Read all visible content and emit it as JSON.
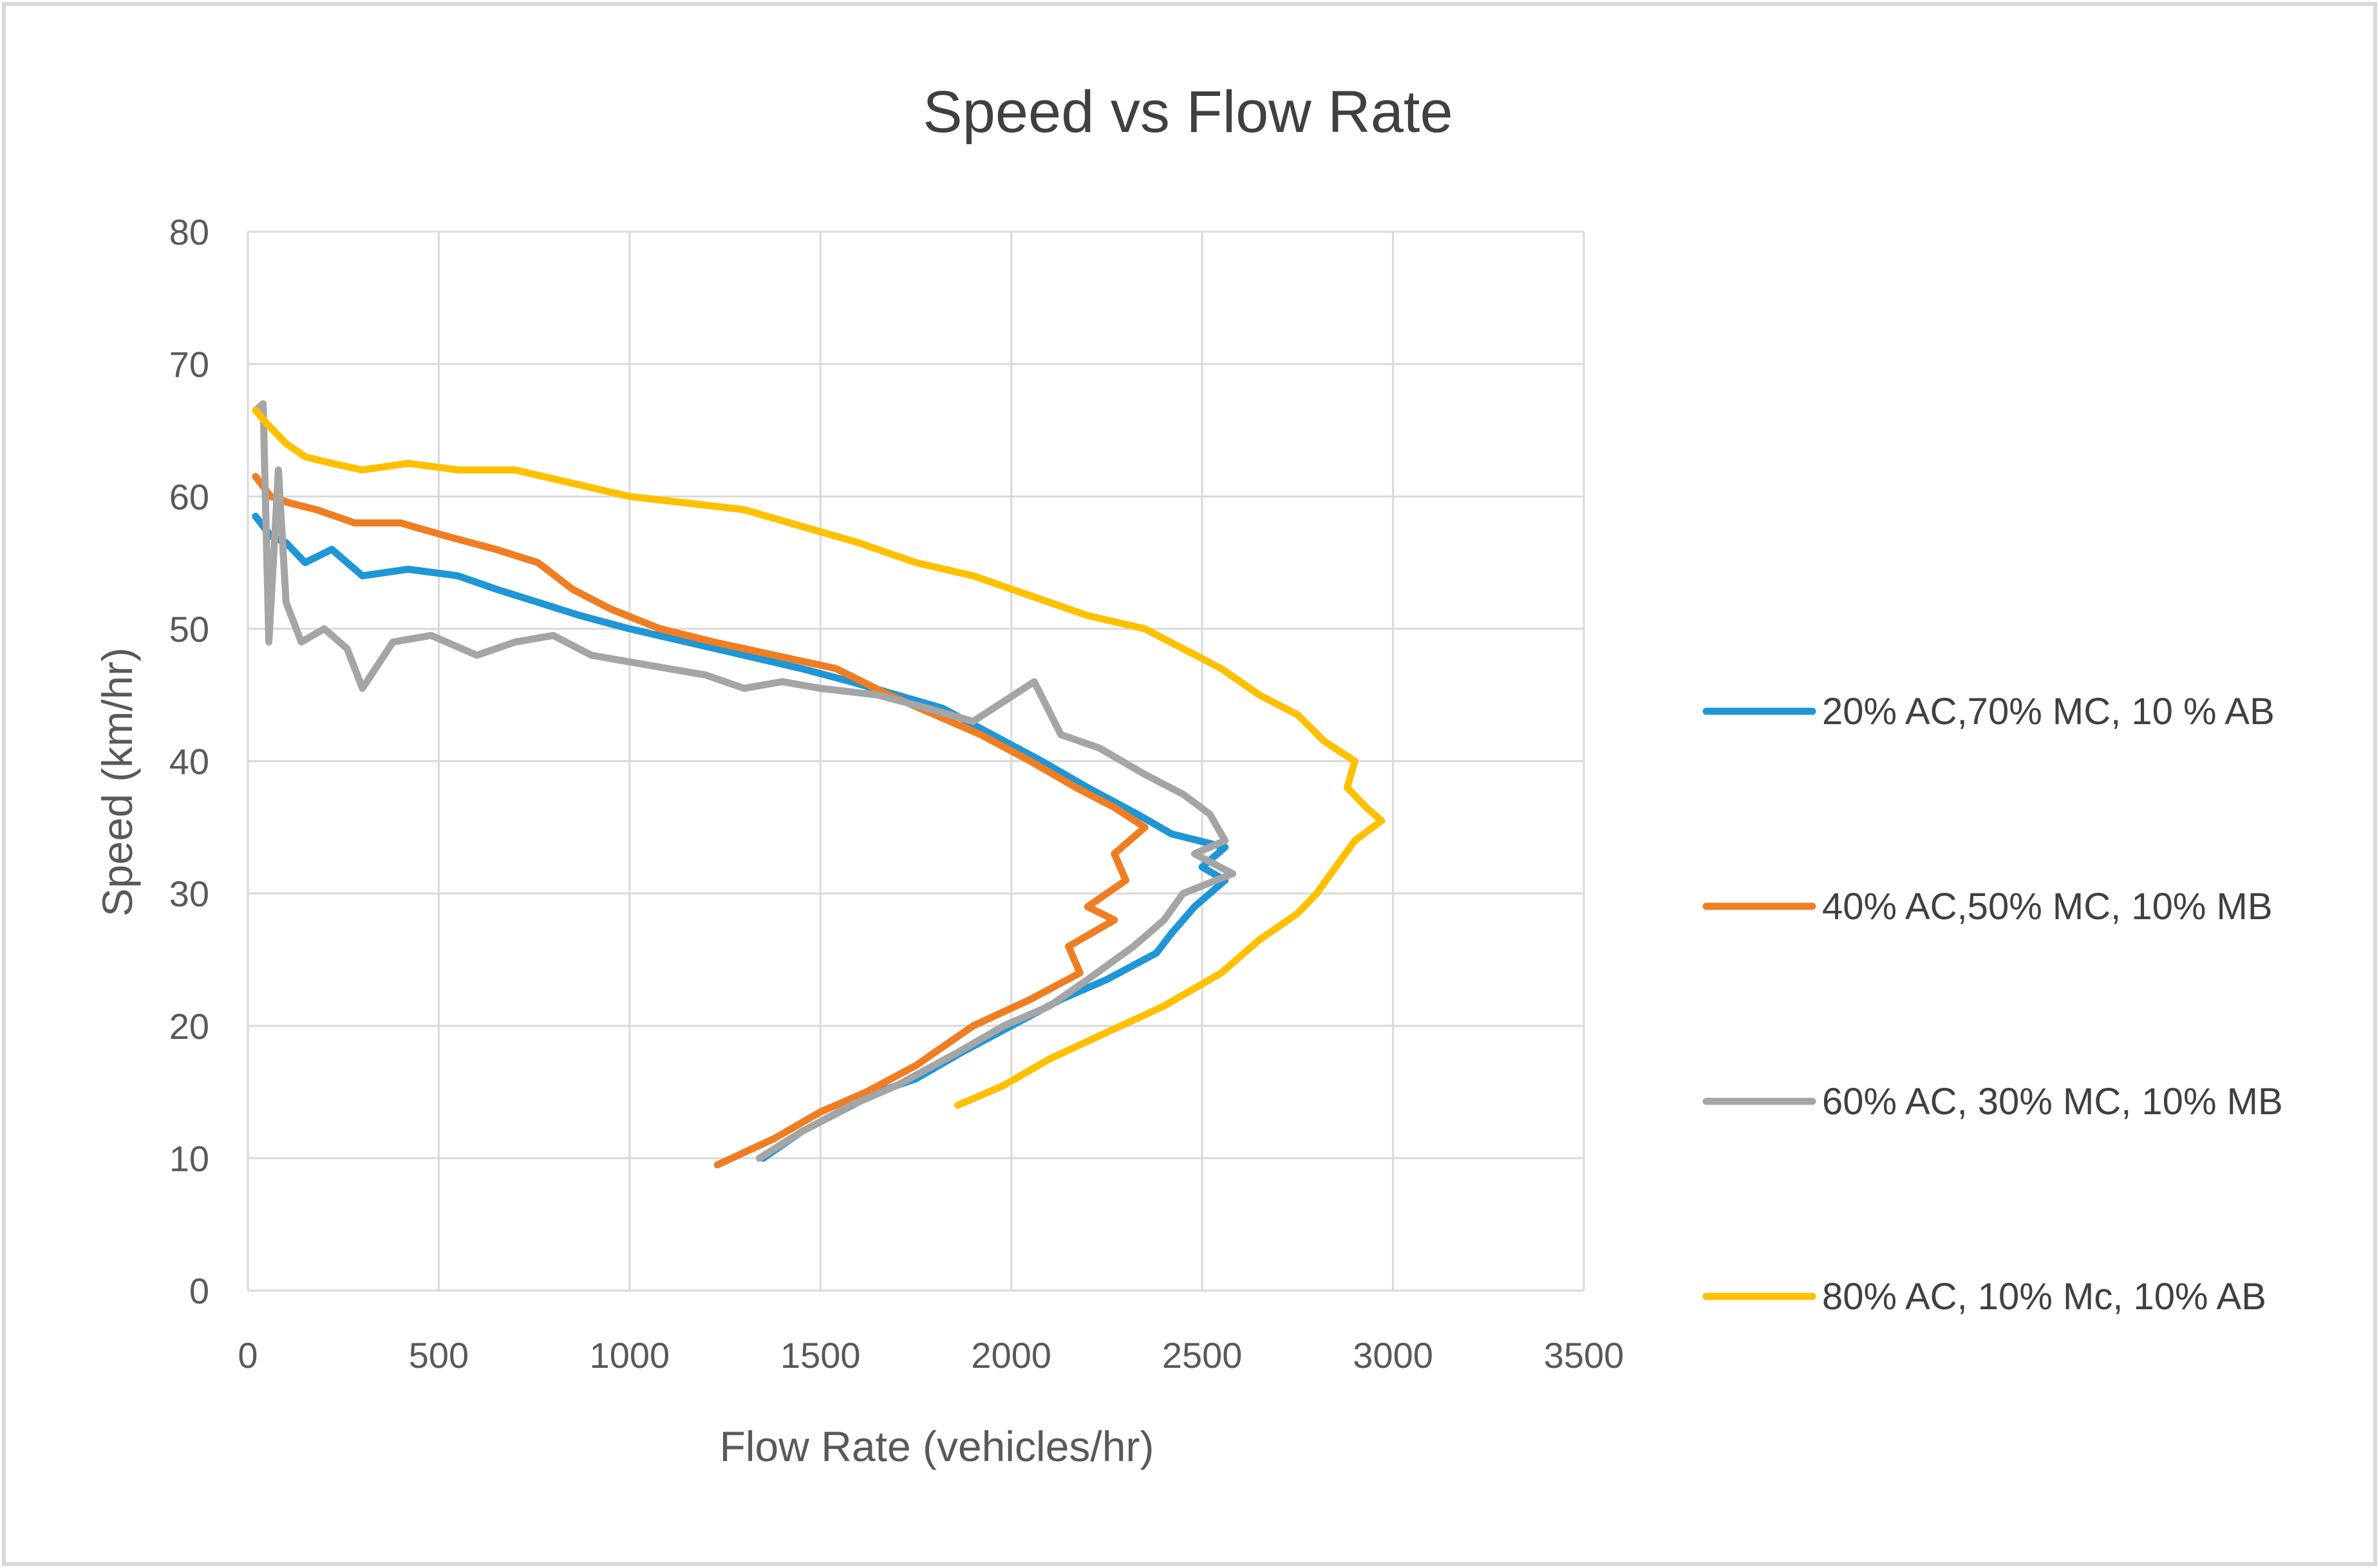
{
  "chart_data": {
    "type": "line",
    "title": "Speed vs Flow Rate",
    "xlabel": "Flow Rate (vehicles/hr)",
    "ylabel": "Speed (km/hr)",
    "xlim": [
      0,
      3500
    ],
    "ylim": [
      0,
      80
    ],
    "xticks": [
      0,
      500,
      1000,
      1500,
      2000,
      2500,
      3000,
      3500
    ],
    "yticks": [
      0,
      10,
      20,
      30,
      40,
      50,
      60,
      70,
      80
    ],
    "xtick_labels": [
      "0",
      "500",
      "1000",
      "1500",
      "2000",
      "2500",
      "3000",
      "3500"
    ],
    "ytick_labels": [
      "0",
      "10",
      "20",
      "30",
      "40",
      "50",
      "60",
      "70",
      "80"
    ],
    "grid": true,
    "legend_position": "right",
    "series": [
      {
        "name": "20% AC,70% MC, 10 % AB",
        "color": "#1f96d6",
        "points": [
          [
            20,
            58.5
          ],
          [
            60,
            57
          ],
          [
            100,
            56.5
          ],
          [
            150,
            55
          ],
          [
            220,
            56
          ],
          [
            300,
            54
          ],
          [
            420,
            54.5
          ],
          [
            550,
            54
          ],
          [
            650,
            53
          ],
          [
            760,
            52
          ],
          [
            870,
            51
          ],
          [
            1000,
            50
          ],
          [
            1150,
            49
          ],
          [
            1300,
            48
          ],
          [
            1450,
            47
          ],
          [
            1580,
            46
          ],
          [
            1700,
            45
          ],
          [
            1820,
            44
          ],
          [
            1950,
            42
          ],
          [
            2080,
            40
          ],
          [
            2200,
            38
          ],
          [
            2330,
            36
          ],
          [
            2420,
            34.5
          ],
          [
            2560,
            33.5
          ],
          [
            2500,
            32
          ],
          [
            2560,
            31
          ],
          [
            2480,
            29
          ],
          [
            2420,
            27
          ],
          [
            2380,
            25.5
          ],
          [
            2250,
            23.5
          ],
          [
            2130,
            22
          ],
          [
            2000,
            20
          ],
          [
            1870,
            18
          ],
          [
            1750,
            16
          ],
          [
            1650,
            15
          ],
          [
            1550,
            13.5
          ],
          [
            1450,
            12
          ],
          [
            1350,
            10
          ]
        ]
      },
      {
        "name": "40% AC,50% MC, 10% MB",
        "color": "#f07d22",
        "points": [
          [
            20,
            61.5
          ],
          [
            60,
            60
          ],
          [
            110,
            59.5
          ],
          [
            180,
            59
          ],
          [
            280,
            58
          ],
          [
            400,
            58
          ],
          [
            520,
            57
          ],
          [
            650,
            56
          ],
          [
            760,
            55
          ],
          [
            850,
            53
          ],
          [
            950,
            51.5
          ],
          [
            1080,
            50
          ],
          [
            1220,
            49
          ],
          [
            1380,
            48
          ],
          [
            1540,
            47
          ],
          [
            1680,
            45
          ],
          [
            1800,
            43.5
          ],
          [
            1920,
            42
          ],
          [
            2050,
            40
          ],
          [
            2170,
            38
          ],
          [
            2270,
            36.5
          ],
          [
            2350,
            35
          ],
          [
            2270,
            33
          ],
          [
            2300,
            31
          ],
          [
            2200,
            29
          ],
          [
            2270,
            28
          ],
          [
            2150,
            26
          ],
          [
            2180,
            24
          ],
          [
            2050,
            22
          ],
          [
            1900,
            20
          ],
          [
            1750,
            17
          ],
          [
            1620,
            15
          ],
          [
            1500,
            13.5
          ],
          [
            1380,
            11.5
          ],
          [
            1230,
            9.5
          ]
        ]
      },
      {
        "name": "60% AC, 30% MC, 10% MB",
        "color": "#a5a5a5",
        "points": [
          [
            20,
            66.5
          ],
          [
            40,
            67
          ],
          [
            55,
            49
          ],
          [
            80,
            62
          ],
          [
            100,
            52
          ],
          [
            140,
            49
          ],
          [
            200,
            50
          ],
          [
            260,
            48.5
          ],
          [
            300,
            45.5
          ],
          [
            380,
            49
          ],
          [
            480,
            49.5
          ],
          [
            600,
            48
          ],
          [
            700,
            49
          ],
          [
            800,
            49.5
          ],
          [
            900,
            48
          ],
          [
            1000,
            47.5
          ],
          [
            1100,
            47
          ],
          [
            1200,
            46.5
          ],
          [
            1300,
            45.5
          ],
          [
            1400,
            46
          ],
          [
            1500,
            45.5
          ],
          [
            1650,
            45
          ],
          [
            1780,
            44
          ],
          [
            1900,
            43
          ],
          [
            2060,
            46
          ],
          [
            2130,
            42
          ],
          [
            2230,
            41
          ],
          [
            2350,
            39
          ],
          [
            2450,
            37.5
          ],
          [
            2520,
            36
          ],
          [
            2560,
            34
          ],
          [
            2480,
            33
          ],
          [
            2580,
            31.5
          ],
          [
            2450,
            30
          ],
          [
            2400,
            28
          ],
          [
            2320,
            26
          ],
          [
            2200,
            23.5
          ],
          [
            2100,
            21.5
          ],
          [
            1980,
            20
          ],
          [
            1860,
            18
          ],
          [
            1700,
            15.5
          ],
          [
            1580,
            14
          ],
          [
            1450,
            12
          ],
          [
            1340,
            10
          ]
        ]
      },
      {
        "name": "80% AC, 10% Mc, 10% AB",
        "color": "#ffc000",
        "points": [
          [
            20,
            66.5
          ],
          [
            50,
            65.5
          ],
          [
            100,
            64
          ],
          [
            150,
            63
          ],
          [
            220,
            62.5
          ],
          [
            300,
            62
          ],
          [
            420,
            62.5
          ],
          [
            550,
            62
          ],
          [
            700,
            62
          ],
          [
            850,
            61
          ],
          [
            1000,
            60
          ],
          [
            1150,
            59.5
          ],
          [
            1300,
            59
          ],
          [
            1480,
            57.5
          ],
          [
            1600,
            56.5
          ],
          [
            1750,
            55
          ],
          [
            1900,
            54
          ],
          [
            2050,
            52.5
          ],
          [
            2200,
            51
          ],
          [
            2350,
            50
          ],
          [
            2450,
            48.5
          ],
          [
            2550,
            47
          ],
          [
            2650,
            45
          ],
          [
            2750,
            43.5
          ],
          [
            2820,
            41.5
          ],
          [
            2900,
            40
          ],
          [
            2880,
            38
          ],
          [
            2930,
            36.5
          ],
          [
            2970,
            35.5
          ],
          [
            2900,
            34
          ],
          [
            2850,
            32
          ],
          [
            2800,
            30
          ],
          [
            2750,
            28.5
          ],
          [
            2650,
            26.5
          ],
          [
            2550,
            24
          ],
          [
            2400,
            21.5
          ],
          [
            2250,
            19.5
          ],
          [
            2100,
            17.5
          ],
          [
            1980,
            15.5
          ],
          [
            1860,
            14
          ]
        ]
      }
    ]
  }
}
